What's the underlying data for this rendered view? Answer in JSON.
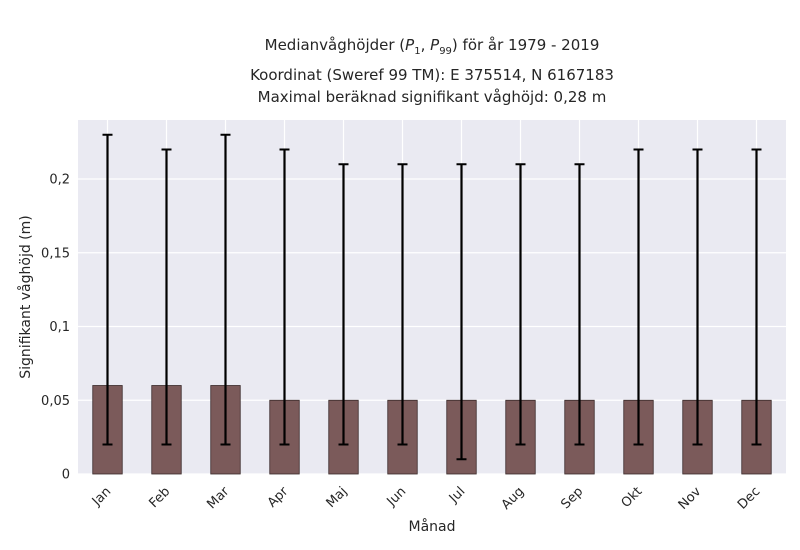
{
  "title": {
    "line1_prefix": "Medianvåghöjder (",
    "p_symbol": "P",
    "p_low_sub": "1",
    "p_sep": ", ",
    "p_high_sub": "99",
    "line1_suffix": ") för år 1979 - 2019",
    "line2": "Koordinat (Sweref 99 TM): E 375514, N 6167183",
    "line3": "Maximal beräknad signifikant våghöjd: 0,28 m"
  },
  "chart_data": {
    "type": "bar",
    "title": "Medianvåghöjder (P1, P99) för år 1979 - 2019",
    "xlabel": "Månad",
    "ylabel": "Signifikant våghöjd (m)",
    "categories": [
      "Jan",
      "Feb",
      "Mar",
      "Apr",
      "Maj",
      "Jun",
      "Jul",
      "Aug",
      "Sep",
      "Okt",
      "Nov",
      "Dec"
    ],
    "values": [
      0.06,
      0.06,
      0.06,
      0.05,
      0.05,
      0.05,
      0.05,
      0.05,
      0.05,
      0.05,
      0.05,
      0.05
    ],
    "err_low": [
      0.02,
      0.02,
      0.02,
      0.02,
      0.02,
      0.02,
      0.01,
      0.02,
      0.02,
      0.02,
      0.02,
      0.02
    ],
    "err_high": [
      0.23,
      0.22,
      0.23,
      0.22,
      0.21,
      0.21,
      0.21,
      0.21,
      0.21,
      0.22,
      0.22,
      0.22
    ],
    "ylim": [
      0,
      0.24
    ],
    "yticks": [
      0,
      0.05,
      0.1,
      0.15,
      0.2
    ],
    "ytick_labels": [
      "0",
      "0,05",
      "0,1",
      "0,15",
      "0,2"
    ],
    "grid": true,
    "colors": {
      "bar": "#7b5a5a",
      "bar_edge": "#3a2a2a",
      "error": "#000000",
      "plot_bg": "#eaeaf2",
      "grid": "#ffffff"
    }
  }
}
